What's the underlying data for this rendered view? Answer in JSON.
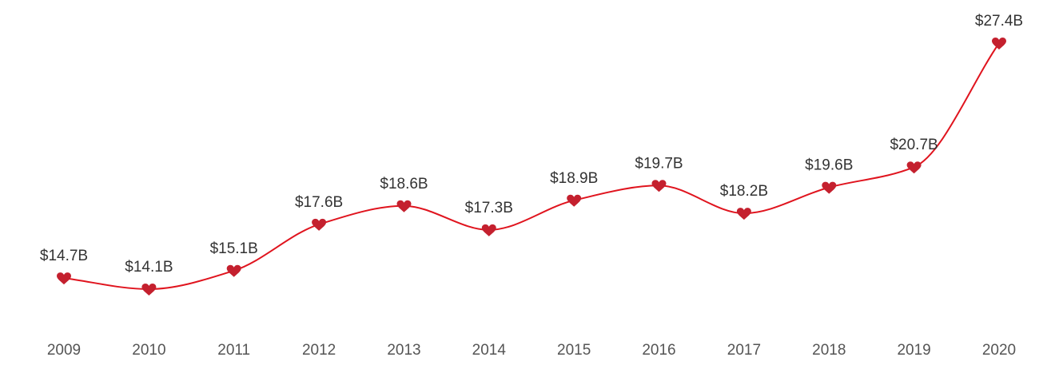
{
  "chart_data": {
    "type": "line",
    "x": [
      "2009",
      "2010",
      "2011",
      "2012",
      "2013",
      "2014",
      "2015",
      "2016",
      "2017",
      "2018",
      "2019",
      "2020"
    ],
    "series": [
      {
        "values": [
          14.7,
          14.1,
          15.1,
          17.6,
          18.6,
          17.3,
          18.9,
          19.7,
          18.2,
          19.6,
          20.7,
          27.4
        ]
      }
    ],
    "data_labels": [
      "$14.7B",
      "$14.1B",
      "$15.1B",
      "$17.6B",
      "$18.6B",
      "$17.3B",
      "$18.9B",
      "$19.7B",
      "$18.2B",
      "$19.6B",
      "$20.7B",
      "$27.4B"
    ],
    "marker": "heart",
    "grid": false,
    "line_color": "#e0141e",
    "marker_color": "#c4202e"
  }
}
